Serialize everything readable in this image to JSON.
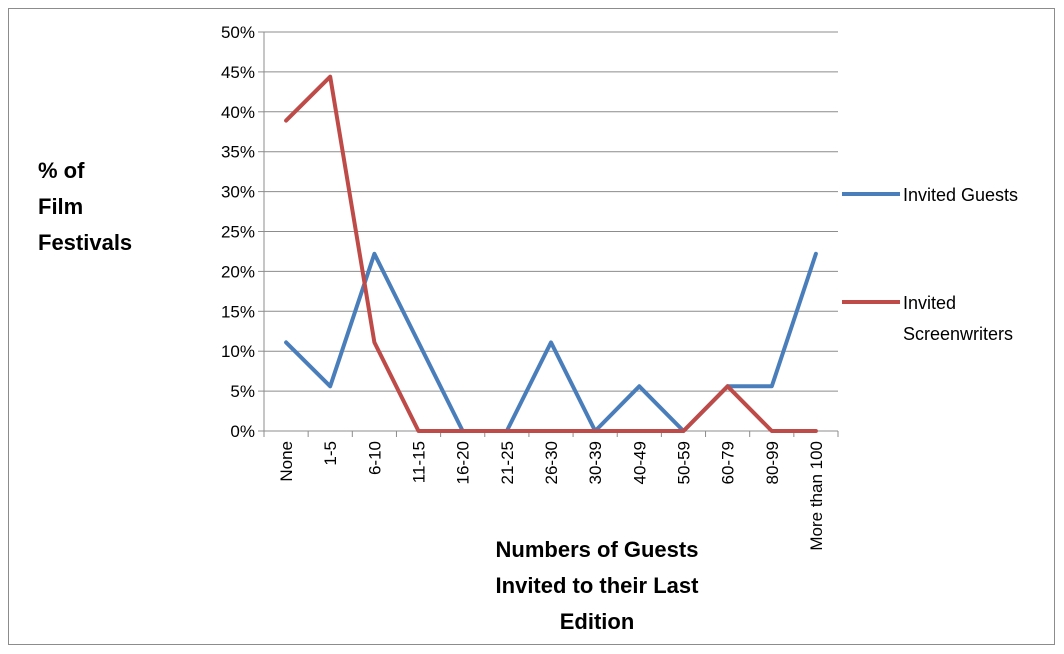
{
  "chart_data": {
    "type": "line",
    "categories": [
      "None",
      "1-5",
      "6-10",
      "11-15",
      "16-20",
      "21-25",
      "26-30",
      "30-39",
      "40-49",
      "50-59",
      "60-79",
      "80-99",
      "More than 100"
    ],
    "series": [
      {
        "name": "Invited Guests",
        "color": "#4a7ebb",
        "values": [
          11.1,
          5.6,
          22.2,
          11.1,
          0,
          0,
          11.1,
          0,
          5.6,
          0,
          5.6,
          5.6,
          22.2
        ]
      },
      {
        "name": "Invited Screenwriters",
        "color": "#be4b48",
        "values": [
          38.9,
          44.4,
          11.1,
          0,
          0,
          0,
          0,
          0,
          0,
          0,
          5.6,
          0,
          0
        ]
      }
    ],
    "ylim": [
      0,
      50
    ],
    "yticks": [
      "0%",
      "5%",
      "10%",
      "15%",
      "20%",
      "25%",
      "30%",
      "35%",
      "40%",
      "45%",
      "50%"
    ],
    "ylabel_lines": [
      "% of",
      "Film",
      "Festivals"
    ],
    "xlabel_lines": [
      "Numbers of Guests",
      "Invited to their Last",
      "Edition"
    ],
    "legend": {
      "position": "right",
      "entries": [
        {
          "lines": [
            "Invited Guests"
          ]
        },
        {
          "lines": [
            "Invited",
            "Screenwriters"
          ]
        }
      ]
    },
    "grid": true
  }
}
